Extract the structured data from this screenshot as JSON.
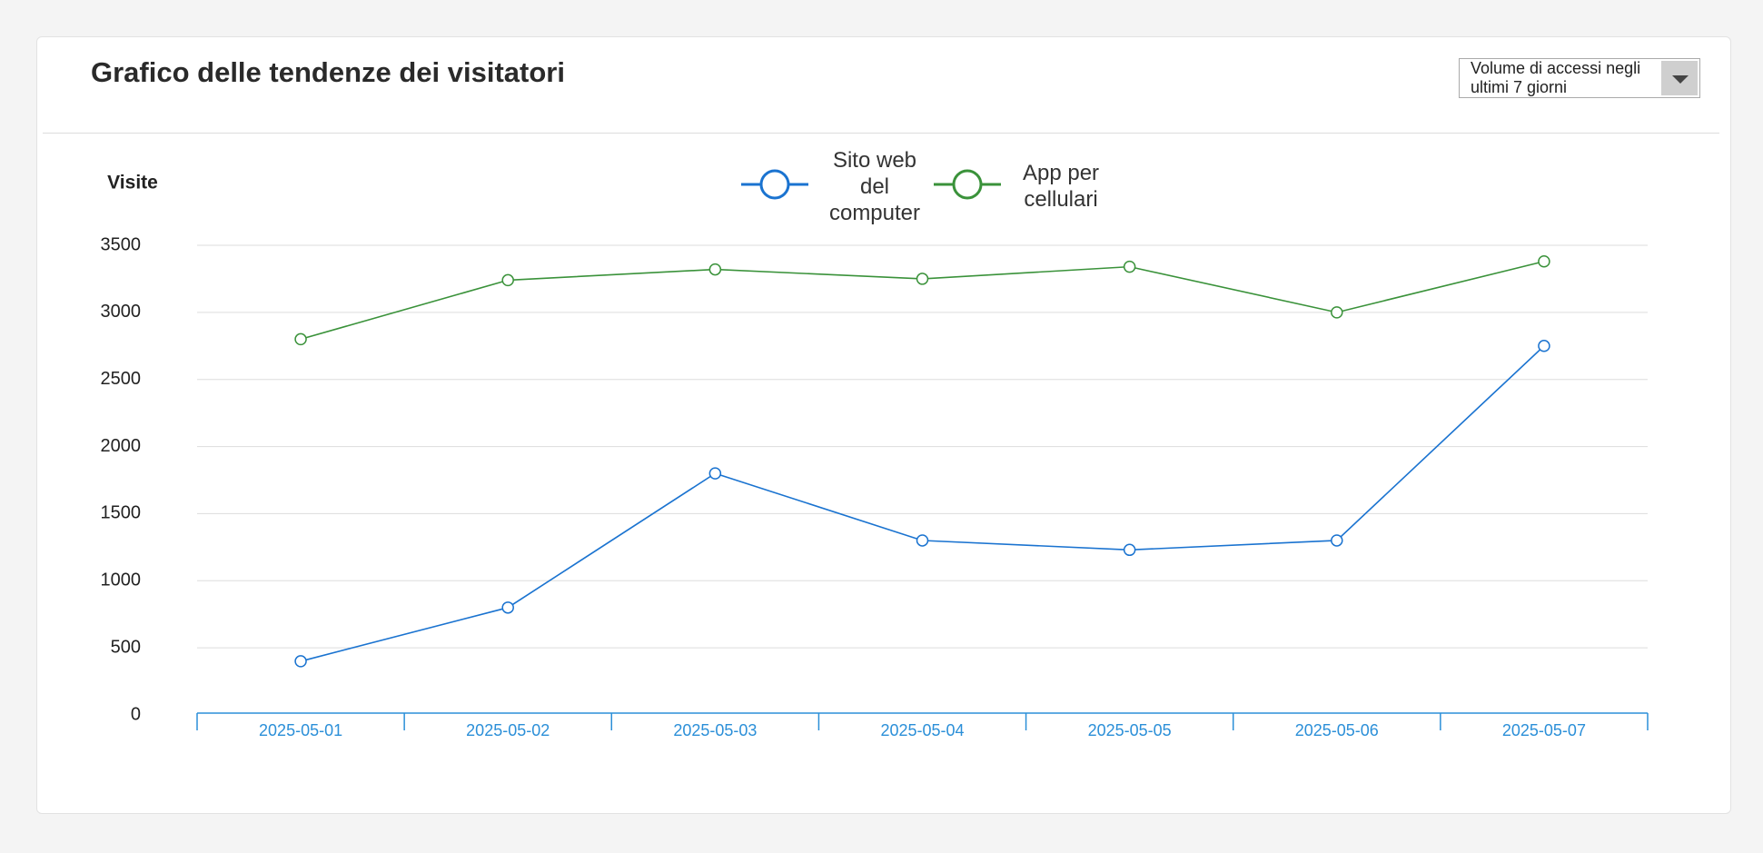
{
  "header": {
    "title": "Grafico delle tendenze dei visitatori",
    "dropdown": "Volume di accessi negli ultimi 7 giorni"
  },
  "chart_data": {
    "type": "line",
    "y_label": "Visite",
    "categories": [
      "2025-05-01",
      "2025-05-02",
      "2025-05-03",
      "2025-05-04",
      "2025-05-05",
      "2025-05-06",
      "2025-05-07"
    ],
    "series": [
      {
        "name": "Sito web del computer",
        "color": "#1a73d0",
        "values": [
          400,
          800,
          1800,
          1300,
          1230,
          1300,
          2750
        ]
      },
      {
        "name": "App per cellulari",
        "color": "#3a923a",
        "values": [
          2800,
          3240,
          3320,
          3250,
          3340,
          3000,
          3380
        ]
      }
    ],
    "ylim": [
      0,
      3500
    ],
    "yticks": [
      0,
      500,
      1000,
      1500,
      2000,
      2500,
      3000,
      3500
    ],
    "grid": true
  }
}
